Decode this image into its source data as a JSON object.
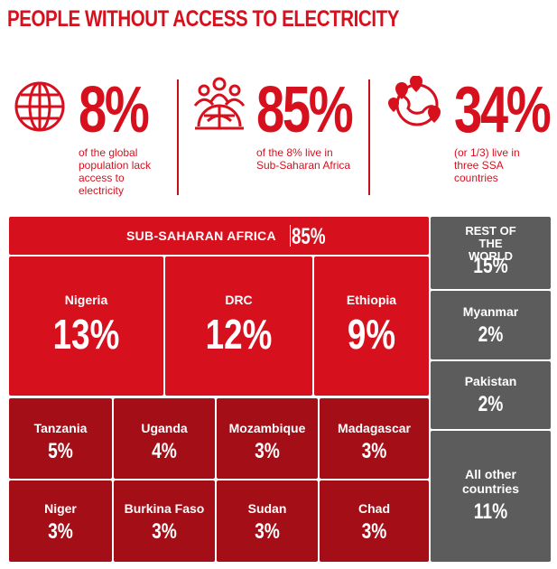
{
  "title": "PEOPLE WITHOUT ACCESS TO ELECTRICITY",
  "stats": [
    {
      "icon": "globe-icon",
      "value": "8%",
      "description": "of the global population lack access to electricity"
    },
    {
      "icon": "people-globe-icon",
      "value": "85%",
      "description": "of the 8% live in Sub-Saharan Africa"
    },
    {
      "icon": "map-pins-globe-icon",
      "value": "34%",
      "description": "(or 1/3) live in three SSA countries"
    }
  ],
  "colors": {
    "accent": "#d7101e",
    "dark_red": "#a30e17",
    "grey": "#5c5c5c"
  },
  "chart_data": {
    "type": "treemap",
    "title": "PEOPLE WITHOUT ACCESS TO ELECTRICITY",
    "groups": [
      {
        "name": "SUB-SAHARAN AFRICA",
        "value_label": "85%",
        "items": [
          {
            "name": "Nigeria",
            "value": 13,
            "label": "13%"
          },
          {
            "name": "DRC",
            "value": 12,
            "label": "12%"
          },
          {
            "name": "Ethiopia",
            "value": 9,
            "label": "9%"
          },
          {
            "name": "Tanzania",
            "value": 5,
            "label": "5%"
          },
          {
            "name": "Uganda",
            "value": 4,
            "label": "4%"
          },
          {
            "name": "Mozambique",
            "value": 3,
            "label": "3%"
          },
          {
            "name": "Madagascar",
            "value": 3,
            "label": "3%"
          },
          {
            "name": "Niger",
            "value": 3,
            "label": "3%"
          },
          {
            "name": "Burkina Faso",
            "value": 3,
            "label": "3%"
          },
          {
            "name": "Sudan",
            "value": 3,
            "label": "3%"
          },
          {
            "name": "Chad",
            "value": 3,
            "label": "3%"
          }
        ]
      },
      {
        "name": "REST OF THE WORLD",
        "value_label": "15%",
        "items": [
          {
            "name": "Myanmar",
            "value": 2,
            "label": "2%"
          },
          {
            "name": "Pakistan",
            "value": 2,
            "label": "2%"
          },
          {
            "name": "All other countries",
            "value": 11,
            "label": "11%"
          }
        ]
      }
    ]
  }
}
